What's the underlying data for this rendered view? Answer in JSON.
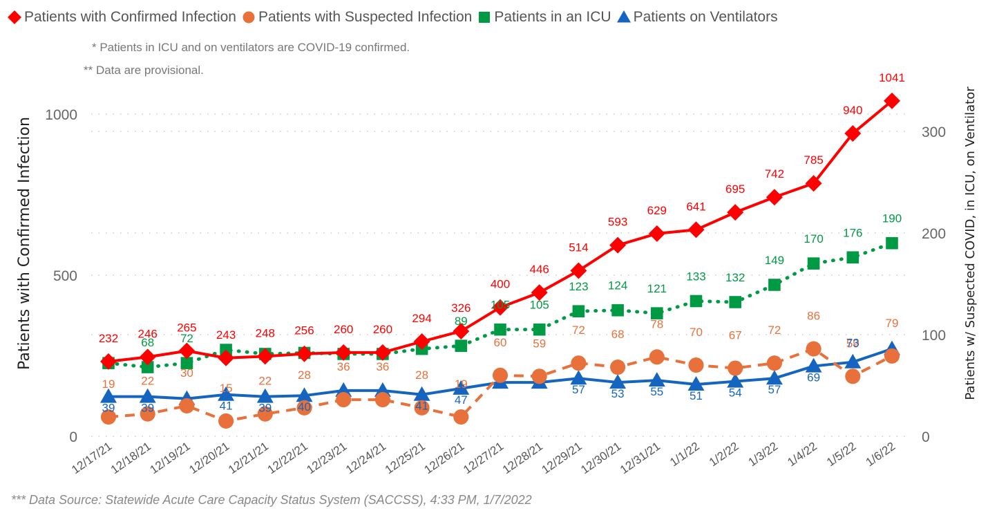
{
  "legend": [
    {
      "name": "Patients with Confirmed Infection",
      "marker": "diamond",
      "color": "#ff0000"
    },
    {
      "name": "Patients with Suspected Infection",
      "marker": "circle",
      "color": "#e8703a"
    },
    {
      "name": "Patients in an ICU",
      "marker": "square",
      "color": "#009a44"
    },
    {
      "name": "Patients on Ventilators",
      "marker": "triangle",
      "color": "#1565c0"
    }
  ],
  "notes": {
    "note1": "* Patients in ICU and on ventilators are COVID-19 confirmed.",
    "note2": "** Data are provisional."
  },
  "footer": "*** Data Source: Statewide Acute Care Capacity Status System (SACCSS), 4:33 PM, 1/7/2022",
  "chart_data": {
    "type": "line",
    "title": "",
    "categories": [
      "12/17/21",
      "12/18/21",
      "12/19/21",
      "12/20/21",
      "12/21/21",
      "12/22/21",
      "12/23/21",
      "12/24/21",
      "12/25/21",
      "12/26/21",
      "12/27/21",
      "12/28/21",
      "12/29/21",
      "12/30/21",
      "12/31/21",
      "1/1/22",
      "1/2/22",
      "1/3/22",
      "1/4/22",
      "1/5/22",
      "1/6/22"
    ],
    "left_axis": {
      "label": "Patients with Confirmed Infection",
      "range": [
        0,
        1000
      ],
      "ticks": [
        "0",
        "500",
        "1000"
      ]
    },
    "right_axis": {
      "label": "Patients w/ Suspected COVID, in ICU, on Ventilator",
      "range": [
        0,
        300
      ],
      "ticks": [
        "0",
        "100",
        "200",
        "300"
      ]
    },
    "grid": "dotted horizontal",
    "legend_position": "top",
    "series": [
      {
        "name": "Patients with Confirmed Infection",
        "axis": "left",
        "color": "#ff0000",
        "line": "solid",
        "marker": "diamond",
        "values": [
          232,
          246,
          265,
          243,
          248,
          256,
          260,
          260,
          294,
          326,
          400,
          446,
          514,
          593,
          629,
          641,
          695,
          742,
          785,
          940,
          1041
        ],
        "labels": [
          "232",
          "246",
          "265",
          "243",
          "248",
          "256",
          "260",
          "260",
          "294",
          "326",
          "400",
          "446",
          "514",
          "593",
          "629",
          "641",
          "695",
          "742",
          "785",
          "940",
          "1041"
        ]
      },
      {
        "name": "Patients with Suspected Infection",
        "axis": "right",
        "color": "#e8703a",
        "line": "dashed",
        "marker": "circle",
        "values": [
          19,
          22,
          30,
          15,
          22,
          28,
          36,
          36,
          28,
          19,
          60,
          59,
          72,
          68,
          78,
          70,
          67,
          72,
          86,
          59,
          79
        ],
        "labels": [
          "19",
          "22",
          "30",
          "15",
          "22",
          "28",
          "36",
          "36",
          "28",
          "19",
          "60",
          "59",
          "72",
          "68",
          "78",
          "70",
          "67",
          "72",
          "86",
          "59",
          "79"
        ]
      },
      {
        "name": "Patients in an ICU",
        "axis": "right",
        "color": "#009a44",
        "line": "dotted",
        "marker": "square",
        "values": [
          72,
          68,
          72,
          85,
          81,
          82,
          81,
          81,
          86,
          89,
          105,
          105,
          123,
          124,
          121,
          133,
          132,
          149,
          170,
          176,
          190
        ],
        "labels": [
          "",
          "68",
          "72",
          "",
          "",
          "",
          "",
          "",
          "",
          "89",
          "105",
          "105",
          "123",
          "124",
          "121",
          "133",
          "132",
          "149",
          "170",
          "176",
          "190"
        ]
      },
      {
        "name": "Patients on Ventilators",
        "axis": "right",
        "color": "#1565c0",
        "line": "solid",
        "marker": "triangle",
        "values": [
          39,
          39,
          37,
          41,
          39,
          40,
          45,
          45,
          41,
          47,
          53,
          53,
          57,
          53,
          55,
          51,
          54,
          57,
          69,
          73,
          86
        ],
        "labels": [
          "39",
          "39",
          "",
          "41",
          "39",
          "40",
          "",
          "",
          "41",
          "47",
          "",
          "",
          "57",
          "53",
          "55",
          "51",
          "54",
          "57",
          "69",
          "73",
          ""
        ]
      }
    ]
  }
}
